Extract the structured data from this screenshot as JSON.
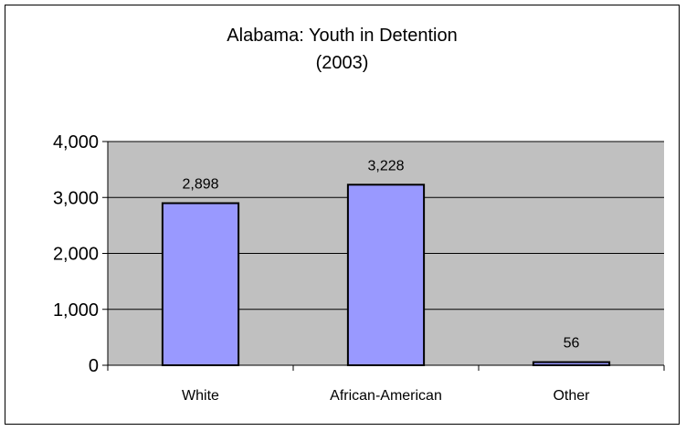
{
  "chart_data": {
    "type": "bar",
    "title": "Alabama: Youth in Detention",
    "subtitle": "(2003)",
    "categories": [
      "White",
      "African-American",
      "Other"
    ],
    "values": [
      2898,
      3228,
      56
    ],
    "data_labels": [
      "2,898",
      "3,228",
      "56"
    ],
    "ylim": [
      0,
      4000
    ],
    "yticks": [
      0,
      1000,
      2000,
      3000,
      4000
    ],
    "ytick_labels": [
      "0",
      "1,000",
      "2,000",
      "3,000",
      "4,000"
    ],
    "xlabel": "",
    "ylabel": "",
    "grid": true,
    "legend": "none",
    "colors": {
      "plot_background": "#c0c0c0",
      "bar_fill": "#9999ff",
      "bar_stroke": "#000000",
      "gridline": "#000000"
    }
  }
}
